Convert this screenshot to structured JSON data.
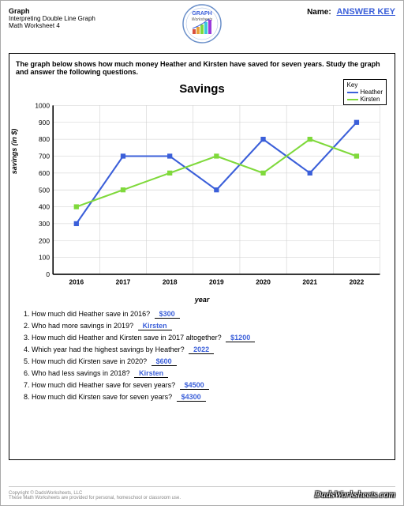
{
  "header": {
    "title": "Graph",
    "subtitle1": "Interpreting Double Line Graph",
    "subtitle2": "Math Worksheet 4",
    "name_label": "Name:",
    "name_value": "ANSWER KEY"
  },
  "badge": {
    "top": "GRAPH",
    "bottom": "Worksheets"
  },
  "instructions": "The graph below shows how much money Heather and Kirsten have saved for seven years.  Study the graph and answer the following questions.",
  "chart": {
    "title": "Savings",
    "ylabel": "savings (in $)",
    "xlabel": "year",
    "ylim": [
      0,
      1000
    ],
    "ytick_step": 100,
    "categories": [
      "2016",
      "2017",
      "2018",
      "2019",
      "2020",
      "2021",
      "2022"
    ],
    "series": [
      {
        "name": "Heather",
        "color": "#3b5fd9",
        "values": [
          300,
          700,
          700,
          500,
          800,
          600,
          900
        ]
      },
      {
        "name": "Kirsten",
        "color": "#7fd93b",
        "values": [
          400,
          500,
          600,
          700,
          600,
          800,
          700
        ]
      }
    ],
    "grid_color": "#cccccc",
    "axis_color": "#000000",
    "marker_size": 3
  },
  "legend_title": "Key",
  "questions": [
    {
      "text": "How much did Heather save in 2016?",
      "answer": "$300"
    },
    {
      "text": "Who had more savings in 2019?",
      "answer": "Kirsten"
    },
    {
      "text": "How much did Heather and Kirsten save in 2017 altogether?",
      "answer": "$1200"
    },
    {
      "text": "Which year had the highest savings by Heather?",
      "answer": "2022"
    },
    {
      "text": "How much did Kirsten save in 2020?",
      "answer": "$600"
    },
    {
      "text": "Who had less savings in 2018?",
      "answer": "Kirsten"
    },
    {
      "text": "How much did Heather save for seven years?",
      "answer": "$4500"
    },
    {
      "text": "How much did Kirsten save for seven years?",
      "answer": "$4300"
    }
  ],
  "footer": {
    "copyright": "Copyright © DadsWorksheets, LLC",
    "tagline": "These Math Worksheets are provided for personal, homeschool or classroom use.",
    "site": "DadsWorksheets.com"
  }
}
